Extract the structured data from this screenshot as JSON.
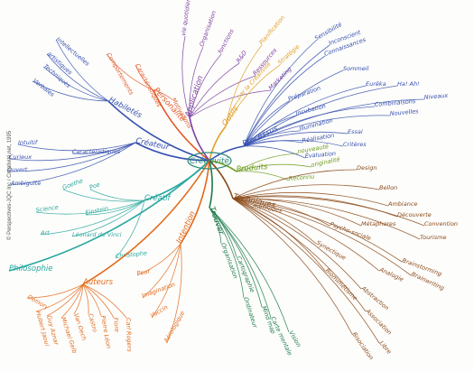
{
  "center": {
    "label": "Créativité"
  },
  "copyright": "© Perspectives-JQC Inc / Créativité.net, 1995",
  "branches": [
    {
      "id": "personalite",
      "color": "#e25a2a",
      "label": "Personalité",
      "children": [
        {
          "label": "Motivations"
        },
        {
          "label": "Comportements"
        },
        {
          "label": "Caractéristiques"
        }
      ]
    },
    {
      "id": "habiletes",
      "color": "#3550b0",
      "label": "Habiletés",
      "children": [
        {
          "label": "Intellectuelles"
        },
        {
          "label": "artistiques"
        },
        {
          "label": "Techniques"
        },
        {
          "label": "Verbales"
        }
      ]
    },
    {
      "id": "createur",
      "color": "#3550b0",
      "label": "Créateur",
      "children": [
        {
          "label": "Caractéristiques"
        },
        {
          "label": "Intuitif"
        },
        {
          "label": "Curieux"
        },
        {
          "label": "Ouvert"
        },
        {
          "label": "Ambiguïté"
        }
      ]
    },
    {
      "id": "createurs",
      "color": "#2aa8a0",
      "label": "Créatif",
      "children": [
        {
          "label": "Poe"
        },
        {
          "label": "Goethe"
        },
        {
          "label": "Einstein"
        },
        {
          "label": "Science"
        },
        {
          "label": "Art"
        },
        {
          "label": "Léonard de Vinci"
        },
        {
          "label": "Christophe"
        }
      ]
    },
    {
      "id": "philosophie",
      "color": "#2aa8a0",
      "label": "Philosophie",
      "children": []
    },
    {
      "id": "auteurs",
      "color": "#e26a1c",
      "label": "Auteurs",
      "children": [
        {
          "label": "Demory"
        },
        {
          "label": "Hubert Jaoui"
        },
        {
          "label": "Guy Aznar"
        },
        {
          "label": "Michael Gelb"
        },
        {
          "label": "Van Oech"
        },
        {
          "label": "Castro"
        },
        {
          "label": "Pierre Léon"
        },
        {
          "label": "Fiore"
        },
        {
          "label": "Carl Rogers"
        }
      ]
    },
    {
      "id": "intention",
      "color": "#e26a1c",
      "label": "Intention",
      "children": [
        {
          "label": "Peur"
        },
        {
          "label": "Imagination"
        },
        {
          "label": "Vaccin"
        },
        {
          "label": "Aérologique"
        }
      ]
    },
    {
      "id": "application",
      "color": "#7a3fa0",
      "label": "Application",
      "children": [
        {
          "label": "vie quotidienne"
        },
        {
          "label": "Organisation"
        },
        {
          "label": "fonctions"
        },
        {
          "label": "R&D"
        },
        {
          "label": "Ressources"
        },
        {
          "label": "Marketing"
        }
      ]
    },
    {
      "id": "outils",
      "color": "#e2a02a",
      "label": "Outils",
      "children": [
        {
          "label": "par la Créativité"
        },
        {
          "label": "Planification"
        },
        {
          "label": "Stratégie"
        }
      ]
    },
    {
      "id": "processus",
      "color": "#3550b0",
      "label": "Processus",
      "children": [
        {
          "label": "Préparation"
        },
        {
          "label": "Incubation"
        },
        {
          "label": "Illumination"
        },
        {
          "label": "Réalisation"
        },
        {
          "label": "Évaluation"
        },
        {
          "label": "Sensibilité"
        },
        {
          "label": "Connaissances"
        },
        {
          "label": "Sommeil"
        },
        {
          "label": "Eurêka"
        },
        {
          "label": "Ha! Ah!"
        },
        {
          "label": "Combinaisons"
        },
        {
          "label": "Nouvelles"
        },
        {
          "label": "Essai"
        },
        {
          "label": "Critères"
        },
        {
          "label": "Inconscient"
        },
        {
          "label": "Niveaux"
        }
      ]
    },
    {
      "id": "produits",
      "color": "#6a9a1a",
      "label": "Produits",
      "children": [
        {
          "label": "nouveauté"
        },
        {
          "label": "originalité"
        },
        {
          "label": "Reconnu"
        }
      ]
    },
    {
      "id": "techniques",
      "color": "#8a4a1a",
      "label": "Techniques",
      "children": [
        {
          "label": "méthodes"
        },
        {
          "label": "Design"
        },
        {
          "label": "Bellon"
        },
        {
          "label": "Ambiance"
        },
        {
          "label": "Découverte"
        },
        {
          "label": "Convention"
        },
        {
          "label": "Tourisme"
        },
        {
          "label": "Métaphores"
        },
        {
          "label": "Brainstorming"
        },
        {
          "label": "Psycho-sociale"
        },
        {
          "label": "Analogie"
        },
        {
          "label": "Synectique"
        },
        {
          "label": "Abstraction"
        },
        {
          "label": "Brainwriting"
        },
        {
          "label": "Biomimétisme"
        },
        {
          "label": "Association"
        },
        {
          "label": "Bisociation"
        },
        {
          "label": "Libre"
        }
      ]
    },
    {
      "id": "trouver",
      "color": "#1a7a4a",
      "label": "Trouver",
      "children": [
        {
          "label": "Organisation"
        },
        {
          "label": "Cartographie"
        },
        {
          "label": "Ordinateur"
        },
        {
          "label": "Mind map"
        },
        {
          "label": "Carte mentale"
        },
        {
          "label": "Vision"
        }
      ]
    }
  ]
}
